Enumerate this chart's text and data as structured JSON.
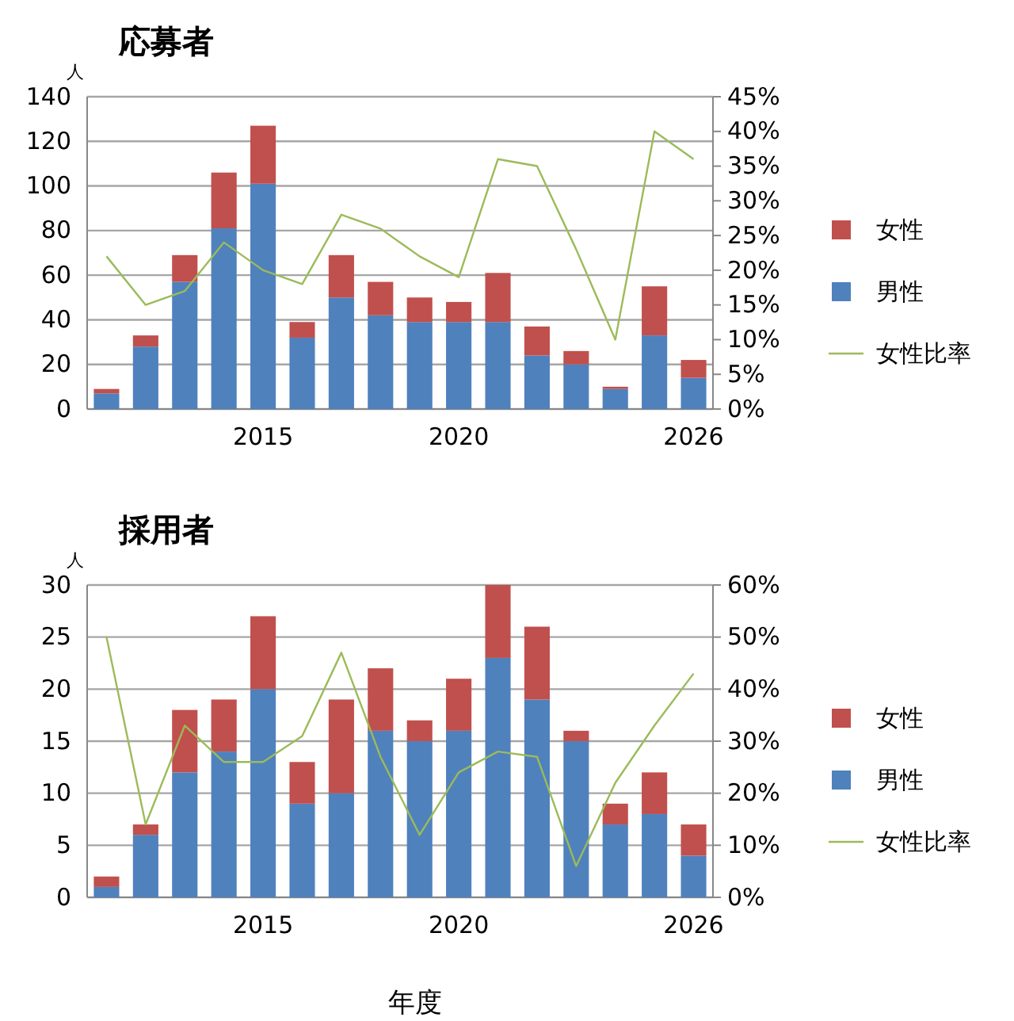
{
  "chart_data": [
    {
      "type": "bar",
      "title": "応募者",
      "ylabel": "人",
      "stacked": true,
      "grid": "y",
      "legend": "right",
      "categories": [
        null,
        null,
        null,
        null,
        "2015",
        null,
        null,
        null,
        null,
        "2020",
        null,
        null,
        null,
        null,
        null,
        "2026"
      ],
      "series": [
        {
          "name": "男性",
          "color": "#4f81bd",
          "values": [
            7,
            28,
            57,
            81,
            101,
            32,
            50,
            42,
            39,
            39,
            39,
            24,
            20,
            9,
            33,
            14
          ]
        },
        {
          "name": "女性",
          "color": "#c0504d",
          "values": [
            2,
            5,
            12,
            25,
            26,
            7,
            19,
            15,
            11,
            9,
            22,
            13,
            6,
            1,
            22,
            8
          ]
        },
        {
          "name": "女性比率",
          "type": "line",
          "axis": "y2",
          "color": "#9bbb59",
          "values": [
            22,
            15,
            17,
            24,
            20,
            18,
            28,
            26,
            22,
            19,
            36,
            35,
            23,
            10,
            40,
            36
          ]
        }
      ],
      "ylim": [
        0,
        140
      ],
      "yticks": [
        0,
        20,
        40,
        60,
        80,
        100,
        120,
        140
      ],
      "y2lim": [
        0,
        45
      ],
      "y2ticks": [
        {
          "value": 0,
          "label": "0%"
        },
        {
          "value": 5,
          "label": "5%"
        },
        {
          "value": 10,
          "label": "10%"
        },
        {
          "value": 15,
          "label": "15%"
        },
        {
          "value": 20,
          "label": "20%"
        },
        {
          "value": 25,
          "label": "25%"
        },
        {
          "value": 30,
          "label": "30%"
        },
        {
          "value": 35,
          "label": "35%"
        },
        {
          "value": 40,
          "label": "40%"
        },
        {
          "value": 45,
          "label": "45%"
        }
      ]
    },
    {
      "type": "bar",
      "title": "採用者",
      "ylabel": "人",
      "xlabel": "年度",
      "stacked": true,
      "grid": "y",
      "legend": "right",
      "categories": [
        null,
        null,
        null,
        null,
        "2015",
        null,
        null,
        null,
        null,
        "2020",
        null,
        null,
        null,
        null,
        null,
        "2026"
      ],
      "series": [
        {
          "name": "男性",
          "color": "#4f81bd",
          "values": [
            1,
            6,
            12,
            14,
            20,
            9,
            10,
            16,
            15,
            16,
            23,
            19,
            15,
            7,
            8,
            4
          ]
        },
        {
          "name": "女性",
          "color": "#c0504d",
          "values": [
            1,
            1,
            6,
            5,
            7,
            4,
            9,
            6,
            2,
            5,
            7,
            7,
            1,
            2,
            4,
            3
          ]
        },
        {
          "name": "女性比率",
          "type": "line",
          "axis": "y2",
          "color": "#9bbb59",
          "values": [
            50,
            14,
            33,
            26,
            26,
            31,
            47,
            27,
            12,
            24,
            28,
            27,
            6,
            22,
            33,
            43
          ]
        }
      ],
      "ylim": [
        0,
        30
      ],
      "yticks": [
        0,
        5,
        10,
        15,
        20,
        25,
        30
      ],
      "y2lim": [
        0,
        60
      ],
      "y2ticks": [
        {
          "value": 0,
          "label": "0%"
        },
        {
          "value": 10,
          "label": "10%"
        },
        {
          "value": 20,
          "label": "20%"
        },
        {
          "value": 30,
          "label": "30%"
        },
        {
          "value": 40,
          "label": "40%"
        },
        {
          "value": 50,
          "label": "50%"
        },
        {
          "value": 60,
          "label": "60%"
        }
      ]
    }
  ]
}
